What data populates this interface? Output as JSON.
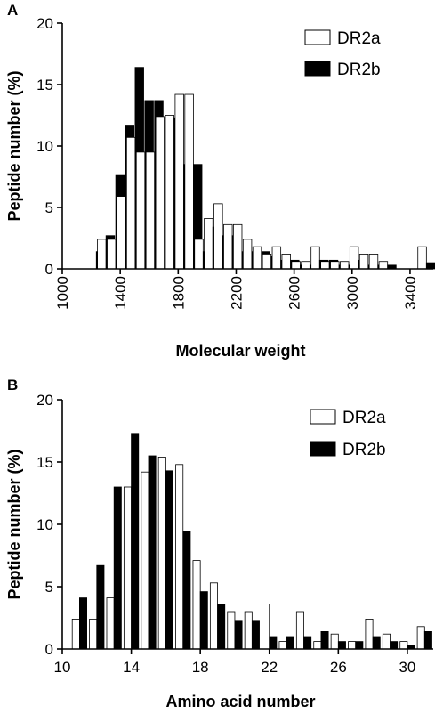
{
  "chart_data": [
    {
      "panel_label": "A",
      "type": "bar",
      "title": "",
      "xlabel": "Molecular weight",
      "ylabel": "Peptide number (%)",
      "xlim": [
        1000,
        3560
      ],
      "ylim": [
        0,
        20
      ],
      "xticks": [
        1000,
        1400,
        1800,
        2200,
        2600,
        3000,
        3400
      ],
      "yticks": [
        0,
        5,
        10,
        15,
        20
      ],
      "bin_width": 67,
      "legend_position": "top-right",
      "x": [
        1235,
        1302,
        1369,
        1436,
        1503,
        1570,
        1637,
        1704,
        1771,
        1838,
        1905,
        1972,
        2039,
        2106,
        2173,
        2240,
        2307,
        2374,
        2441,
        2508,
        2575,
        2642,
        2709,
        2776,
        2843,
        2910,
        2977,
        3044,
        3111,
        3178,
        3245,
        3312,
        3379,
        3446,
        3513
      ],
      "series": [
        {
          "name": "DR2a",
          "color": "#ffffff",
          "values": [
            0,
            2.4,
            2.4,
            5.9,
            10.7,
            9.5,
            9.5,
            12.4,
            12.5,
            14.2,
            14.2,
            2.4,
            4.1,
            5.3,
            3.6,
            3.6,
            2.4,
            1.8,
            1.2,
            1.8,
            1.2,
            0.6,
            0.6,
            1.8,
            0.6,
            0.6,
            0.6,
            1.8,
            1.2,
            1.2,
            0.6,
            0,
            0,
            0,
            1.8
          ]
        },
        {
          "name": "DR2b",
          "color": "#000000",
          "values": [
            1.4,
            2.7,
            7.6,
            11.7,
            16.4,
            13.7,
            13.7,
            12.3,
            12.3,
            8.5,
            8.5,
            1.4,
            3.4,
            2.7,
            2.7,
            1.4,
            1.4,
            1.4,
            1.0,
            0.7,
            0.7,
            0.3,
            0.3,
            0.7,
            0.7,
            0.3,
            0.3,
            0.7,
            0.3,
            0.3,
            0.3,
            0,
            0,
            0,
            0.5
          ]
        }
      ]
    },
    {
      "panel_label": "B",
      "type": "bar",
      "title": "",
      "xlabel": "Amino acid number",
      "ylabel": "Peptide number (%)",
      "xlim": [
        10,
        31.5
      ],
      "ylim": [
        0,
        20
      ],
      "xticks": [
        10,
        14,
        18,
        22,
        26,
        30
      ],
      "yticks": [
        0,
        5,
        10,
        15,
        20
      ],
      "bin_width": 1,
      "legend_position": "top-right",
      "x": [
        11,
        12,
        13,
        14,
        15,
        16,
        17,
        18,
        19,
        20,
        21,
        22,
        23,
        24,
        25,
        26,
        27,
        28,
        29,
        30,
        31
      ],
      "series": [
        {
          "name": "DR2a",
          "color": "#ffffff",
          "values": [
            2.4,
            2.4,
            4.1,
            13.0,
            14.2,
            15.4,
            14.8,
            7.1,
            5.3,
            3.0,
            3.0,
            3.6,
            0.6,
            3.0,
            0.6,
            1.2,
            0.6,
            2.4,
            1.2,
            0.6,
            1.8
          ]
        },
        {
          "name": "DR2b",
          "color": "#000000",
          "values": [
            4.1,
            6.7,
            13.0,
            17.3,
            15.5,
            14.3,
            9.4,
            4.6,
            3.6,
            2.3,
            2.3,
            1.0,
            1.0,
            1.0,
            1.4,
            0.6,
            0.6,
            1.0,
            0.6,
            0.3,
            1.4
          ]
        }
      ]
    }
  ]
}
